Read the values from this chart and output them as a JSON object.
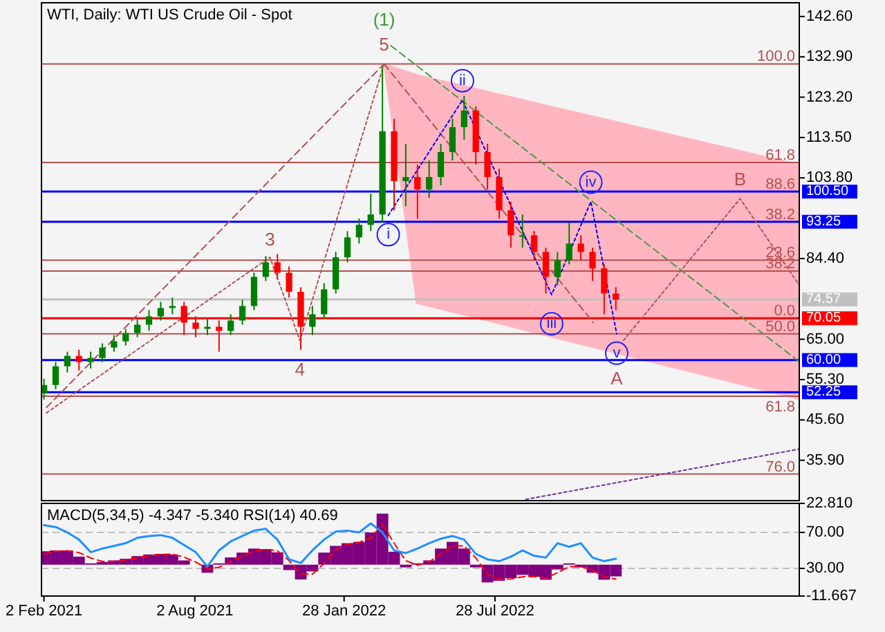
{
  "chart_data": [
    {
      "type": "candlestick",
      "title": "WTI, Daily:  WTI US Crude Oil - Spot",
      "tick_labels": "y",
      "xlim": [
        "2021-01-30",
        "2023-07-28"
      ],
      "ylim": [
        26.2,
        145.9
      ],
      "yticks": [
        {
          "value": 142.6,
          "label": "142.60"
        },
        {
          "value": 132.9,
          "label": "132.90"
        },
        {
          "value": 123.2,
          "label": "123.20"
        },
        {
          "value": 113.5,
          "label": "113.50"
        },
        {
          "value": 103.8,
          "label": "103.80"
        },
        {
          "value": 84.4,
          "label": "84.40"
        },
        {
          "value": 65,
          "label": "65.00"
        },
        {
          "value": 55.3,
          "label": "55.30"
        },
        {
          "value": 45.6,
          "label": "45.60"
        },
        {
          "value": 35.9,
          "label": "35.90"
        }
      ],
      "x": [
        "2021-02-02",
        "2021-02-16",
        "2021-03-02",
        "2021-03-16",
        "2021-03-30",
        "2021-04-13",
        "2021-04-27",
        "2021-05-11",
        "2021-05-25",
        "2021-06-08",
        "2021-06-22",
        "2021-07-06",
        "2021-07-20",
        "2021-08-03",
        "2021-08-17",
        "2021-08-31",
        "2021-09-14",
        "2021-09-28",
        "2021-10-12",
        "2021-10-26",
        "2021-11-09",
        "2021-11-23",
        "2021-12-07",
        "2021-12-21",
        "2022-01-04",
        "2022-01-18",
        "2022-02-01",
        "2022-02-15",
        "2022-03-01",
        "2022-03-15",
        "2022-03-29",
        "2022-04-12",
        "2022-04-26",
        "2022-05-10",
        "2022-05-24",
        "2022-06-07",
        "2022-06-21",
        "2022-07-05",
        "2022-07-19",
        "2022-08-02",
        "2022-08-16",
        "2022-08-30",
        "2022-09-13",
        "2022-09-27",
        "2022-10-11",
        "2022-10-25",
        "2022-11-08",
        "2022-11-22",
        "2022-12-06",
        "2022-12-20"
      ],
      "ohlc": [
        [
          52,
          55.5,
          50.5,
          54
        ],
        [
          54,
          59.5,
          53,
          58.5
        ],
        [
          58.5,
          62,
          57,
          61
        ],
        [
          61,
          62.5,
          57.5,
          59.5
        ],
        [
          59.5,
          62,
          58,
          60.5
        ],
        [
          60.5,
          64,
          59.5,
          63
        ],
        [
          63,
          66,
          62,
          64.5
        ],
        [
          64.5,
          67.5,
          63.5,
          66.5
        ],
        [
          66.5,
          70,
          65.5,
          68.5
        ],
        [
          68.5,
          72,
          67,
          70.5
        ],
        [
          70.5,
          74,
          69.5,
          72.5
        ],
        [
          72.5,
          75,
          71,
          73
        ],
        [
          73,
          74,
          66,
          69
        ],
        [
          69,
          70.5,
          65.5,
          67.5
        ],
        [
          67.5,
          70,
          66,
          68
        ],
        [
          68,
          69.5,
          62,
          67
        ],
        [
          67,
          71,
          66,
          69.5
        ],
        [
          69.5,
          74.5,
          68.5,
          73
        ],
        [
          73,
          81,
          72,
          80
        ],
        [
          80,
          85,
          79,
          83.5
        ],
        [
          83.5,
          85.5,
          79.5,
          81
        ],
        [
          81,
          82.5,
          75,
          76.4
        ],
        [
          76.4,
          77.5,
          62.5,
          68
        ],
        [
          68,
          73,
          66,
          71
        ],
        [
          71,
          78.5,
          70,
          77
        ],
        [
          77,
          86,
          76,
          84.7
        ],
        [
          84.7,
          91,
          83.5,
          89.5
        ],
        [
          89.5,
          94,
          88,
          92.5
        ],
        [
          92.5,
          100,
          91,
          95
        ],
        [
          95,
          130.5,
          93,
          115
        ],
        [
          115,
          118,
          96,
          103
        ],
        [
          103,
          112,
          97,
          104
        ],
        [
          104,
          107,
          94,
          101
        ],
        [
          101,
          108,
          99,
          104
        ],
        [
          104,
          112,
          102,
          110
        ],
        [
          110,
          118,
          108,
          116
        ],
        [
          116,
          123.5,
          113,
          120
        ],
        [
          120,
          121,
          107,
          110
        ],
        [
          110,
          112,
          101,
          104
        ],
        [
          104,
          106,
          94,
          96
        ],
        [
          96,
          98,
          87,
          90
        ],
        [
          90,
          95,
          87,
          90
        ],
        [
          90,
          91,
          84,
          86
        ],
        [
          86,
          87,
          76,
          80
        ],
        [
          80,
          86,
          78,
          84
        ],
        [
          84,
          93,
          83,
          88
        ],
        [
          88,
          90,
          84,
          86
        ],
        [
          86,
          87,
          79,
          82
        ],
        [
          82,
          83,
          71,
          76
        ],
        [
          76,
          77.5,
          72,
          74.5
        ]
      ],
      "series": [
        {
          "type": "line",
          "x": [
            "2022-03-17",
            "2022-04-25",
            "2022-08-15",
            "2023-03-01",
            "2023-07-28"
          ],
          "values": [
            null,
            null,
            null,
            null,
            null
          ],
          "upper": [
            131.2,
            128.6,
            123.3,
            114.0,
            107
          ],
          "lower": [
            131.2,
            73.7,
            68.1,
            58.1,
            50.6
          ],
          "color": "#ffb6c1"
        },
        {
          "type": "line",
          "x": [
            "2021-02-05",
            "2022-03-17"
          ],
          "values": [
            48.6,
            131.2
          ],
          "color": "#b45050",
          "line_style": "dashed"
        },
        {
          "type": "line",
          "x": [
            "2021-02-05",
            "2021-10-31",
            "2021-12-06",
            "2022-03-17"
          ],
          "values": [
            47.3,
            84.7,
            64.7,
            131.2
          ],
          "color": "#b45050",
          "line_style": "dotted"
        },
        {
          "type": "line",
          "x": [
            "2022-03-17",
            "2022-11-23"
          ],
          "values": [
            131.2,
            69.0
          ],
          "color": "#b45050",
          "line_style": "dashed"
        },
        {
          "type": "line",
          "x": [
            "2022-12-29",
            "2023-05-18",
            "2023-07-28"
          ],
          "values": [
            64.7,
            98.8,
            78.0
          ],
          "color": "#b45050",
          "line_style": "dotted"
        },
        {
          "type": "line",
          "x": [
            "2022-03-25",
            "2023-07-28"
          ],
          "values": [
            135.6,
            59.6
          ],
          "color": "#4a9a4a",
          "line_style": "dashed"
        },
        {
          "type": "line",
          "x": [
            "2022-03-22",
            "2022-06-19",
            "2022-10-04",
            "2022-11-20",
            "2022-12-21"
          ],
          "values": [
            94.8,
            122.5,
            75.7,
            98.1,
            66.3
          ],
          "color": "#0000ff",
          "line_style": "dotted"
        },
        {
          "type": "line",
          "x": [
            "2022-09-03",
            "2023-07-28"
          ],
          "values": [
            26.5,
            38.6
          ],
          "color": "#7030a0",
          "line_style": "dotted"
        }
      ],
      "ref_lines": [
        {
          "axis": "y",
          "value": 131.2,
          "color": "#b45050"
        },
        {
          "axis": "y",
          "value": 107.5,
          "color": "#b45050"
        },
        {
          "axis": "y",
          "value": 100.5,
          "label": "100.50",
          "color": "#0000ff"
        },
        {
          "axis": "y",
          "value": 93.25,
          "label": "93.25",
          "color": "#0000ff"
        },
        {
          "axis": "y",
          "value": 84.0,
          "color": "#b45050"
        },
        {
          "axis": "y",
          "value": 81.4,
          "color": "#b45050"
        },
        {
          "axis": "y",
          "value": 74.57,
          "label": "74.57",
          "color": "#c0c0c0"
        },
        {
          "axis": "y",
          "value": 70.05,
          "label": "70.05",
          "color": "#ff0000"
        },
        {
          "axis": "y",
          "value": 66.3,
          "color": "#b45050"
        },
        {
          "axis": "y",
          "value": 60.0,
          "label": "60.00",
          "color": "#0000ff"
        },
        {
          "axis": "y",
          "value": 52.25,
          "label": "52.25",
          "color": "#0000ff"
        },
        {
          "axis": "y",
          "value": 51.3,
          "color": "#b45050"
        },
        {
          "axis": "y",
          "value": 32.6,
          "color": "#b45050"
        }
      ],
      "annotations": [
        {
          "text": "(1)",
          "x": "2022-03-17",
          "y": 131.2
        },
        {
          "text": "5",
          "x": "2022-03-17",
          "y": 131.2
        },
        {
          "text": "3",
          "x": "2021-10-31",
          "y": 84.7
        },
        {
          "text": "4",
          "x": "2021-12-06",
          "y": 64.7
        },
        {
          "text": "i",
          "x": "2022-03-22",
          "y": 94.8
        },
        {
          "text": "ii",
          "x": "2022-06-19",
          "y": 122.5
        },
        {
          "text": "iii",
          "x": "2022-10-04",
          "y": 75.7
        },
        {
          "text": "iv",
          "x": "2022-11-20",
          "y": 98.1
        },
        {
          "text": "v",
          "x": "2022-12-21",
          "y": 66.3
        },
        {
          "text": "A",
          "x": "2022-12-21",
          "y": 66.3
        },
        {
          "text": "B",
          "x": "2023-05-18",
          "y": 98.8
        },
        {
          "text": "100.0",
          "x": "2023-07-28",
          "y": 131.2
        },
        {
          "text": "61.8",
          "x": "2023-07-28",
          "y": 107.5
        },
        {
          "text": "88.6",
          "x": "2023-07-28",
          "y": 100.5
        },
        {
          "text": "38.2",
          "x": "2023-07-28",
          "y": 93.25
        },
        {
          "text": "23.6",
          "x": "2023-07-28",
          "y": 84.0
        },
        {
          "text": "38.2",
          "x": "2023-07-28",
          "y": 81.4
        },
        {
          "text": "0.0",
          "x": "2023-07-28",
          "y": 70.05
        },
        {
          "text": "50.0",
          "x": "2023-07-28",
          "y": 66.3
        },
        {
          "text": "61.8",
          "x": "2023-07-28",
          "y": 51.3
        },
        {
          "text": "76.0",
          "x": "2023-07-28",
          "y": 32.6
        }
      ]
    },
    {
      "type": "bar",
      "title": "MACD(5,34,5) -4.347 -5.340 RSI(14) 40.69",
      "xlim": [
        "2021-01-30",
        "2023-07-28"
      ],
      "xticks": [
        {
          "value": "2021-02-02",
          "label": "2 Feb 2021"
        },
        {
          "value": "2021-08-02",
          "label": "2 Aug 2021"
        },
        {
          "value": "2022-01-28",
          "label": "28 Jan 2022"
        },
        {
          "value": "2022-07-28",
          "label": "28 Jul 2022"
        }
      ],
      "ylim": [
        -11.667,
        22.81
      ],
      "yticks": [
        {
          "value": 22.81,
          "label": "22.810"
        },
        {
          "value": -11.667,
          "label": "-11.667"
        }
      ],
      "y2lim": [
        -0.8,
        102.3
      ],
      "y2ticks": [
        {
          "value": 70,
          "label": "70.00"
        },
        {
          "value": 30,
          "label": "30.00"
        }
      ],
      "x": [
        "2021-02-02",
        "2021-02-16",
        "2021-03-02",
        "2021-03-16",
        "2021-03-30",
        "2021-04-13",
        "2021-04-27",
        "2021-05-11",
        "2021-05-25",
        "2021-06-08",
        "2021-06-22",
        "2021-07-06",
        "2021-07-20",
        "2021-08-03",
        "2021-08-17",
        "2021-08-31",
        "2021-09-14",
        "2021-09-28",
        "2021-10-12",
        "2021-10-26",
        "2021-11-09",
        "2021-11-23",
        "2021-12-07",
        "2021-12-21",
        "2022-01-04",
        "2022-01-18",
        "2022-02-01",
        "2022-02-15",
        "2022-03-01",
        "2022-03-15",
        "2022-03-29",
        "2022-04-12",
        "2022-04-26",
        "2022-05-10",
        "2022-05-24",
        "2022-06-07",
        "2022-06-21",
        "2022-07-05",
        "2022-07-19",
        "2022-08-02",
        "2022-08-16",
        "2022-08-30",
        "2022-09-13",
        "2022-09-27",
        "2022-10-11",
        "2022-10-25",
        "2022-11-08",
        "2022-11-22",
        "2022-12-06",
        "2022-12-20"
      ],
      "series": [
        {
          "type": "bar",
          "color": "#800080",
          "values": [
            5,
            5.3,
            5.3,
            3,
            0.5,
            1,
            1.6,
            2.2,
            3.2,
            3.8,
            4,
            3.8,
            1.6,
            0,
            -3,
            0.5,
            2.7,
            4.5,
            6,
            5.8,
            4.6,
            -2,
            -5.5,
            -2.5,
            4.5,
            7,
            8,
            8.5,
            12,
            19,
            4.8,
            -1,
            0.5,
            1.6,
            6,
            8.5,
            6,
            -1,
            -6.6,
            -6,
            -5,
            -3.8,
            -4.5,
            -5.6,
            -1.8,
            0.5,
            -1,
            -3,
            -5.6,
            -4.347
          ]
        },
        {
          "type": "line",
          "color": "#ff0000",
          "line_style": "dashed",
          "values": [
            4,
            5,
            5.2,
            4.5,
            2.5,
            1.2,
            1.2,
            1.8,
            2.5,
            3.3,
            3.8,
            3.9,
            2.8,
            1,
            -1.5,
            -1,
            1.2,
            3.2,
            5,
            5.7,
            5.2,
            1.5,
            -3.5,
            -3.5,
            0.5,
            5.5,
            7.5,
            8.3,
            10,
            15,
            8,
            1.5,
            -0.2,
            1,
            4,
            7,
            7,
            2.5,
            -3.5,
            -5.5,
            -5.3,
            -4.5,
            -4.4,
            -5,
            -3,
            -0.7,
            -0.7,
            -2,
            -4.5,
            -5.34
          ]
        },
        {
          "type": "line",
          "axis": "y2",
          "color": "#1e90ff",
          "values": [
            78,
            76,
            70,
            62,
            48,
            52,
            55,
            58,
            64,
            66,
            67,
            64,
            56,
            48,
            32,
            50,
            60,
            66,
            72,
            74,
            62,
            40,
            36,
            50,
            62,
            71,
            72,
            70,
            80,
            70,
            50,
            47,
            52,
            58,
            63,
            66,
            62,
            46,
            40,
            38,
            43,
            50,
            44,
            42,
            58,
            54,
            58,
            42,
            38,
            40.69
          ]
        }
      ],
      "ref_lines": [
        {
          "axis": "y2",
          "value": 70,
          "color": "#c0c0c0",
          "line_style": "dashed"
        },
        {
          "axis": "y2",
          "value": 30,
          "color": "#c0c0c0",
          "line_style": "dashed"
        }
      ]
    }
  ]
}
